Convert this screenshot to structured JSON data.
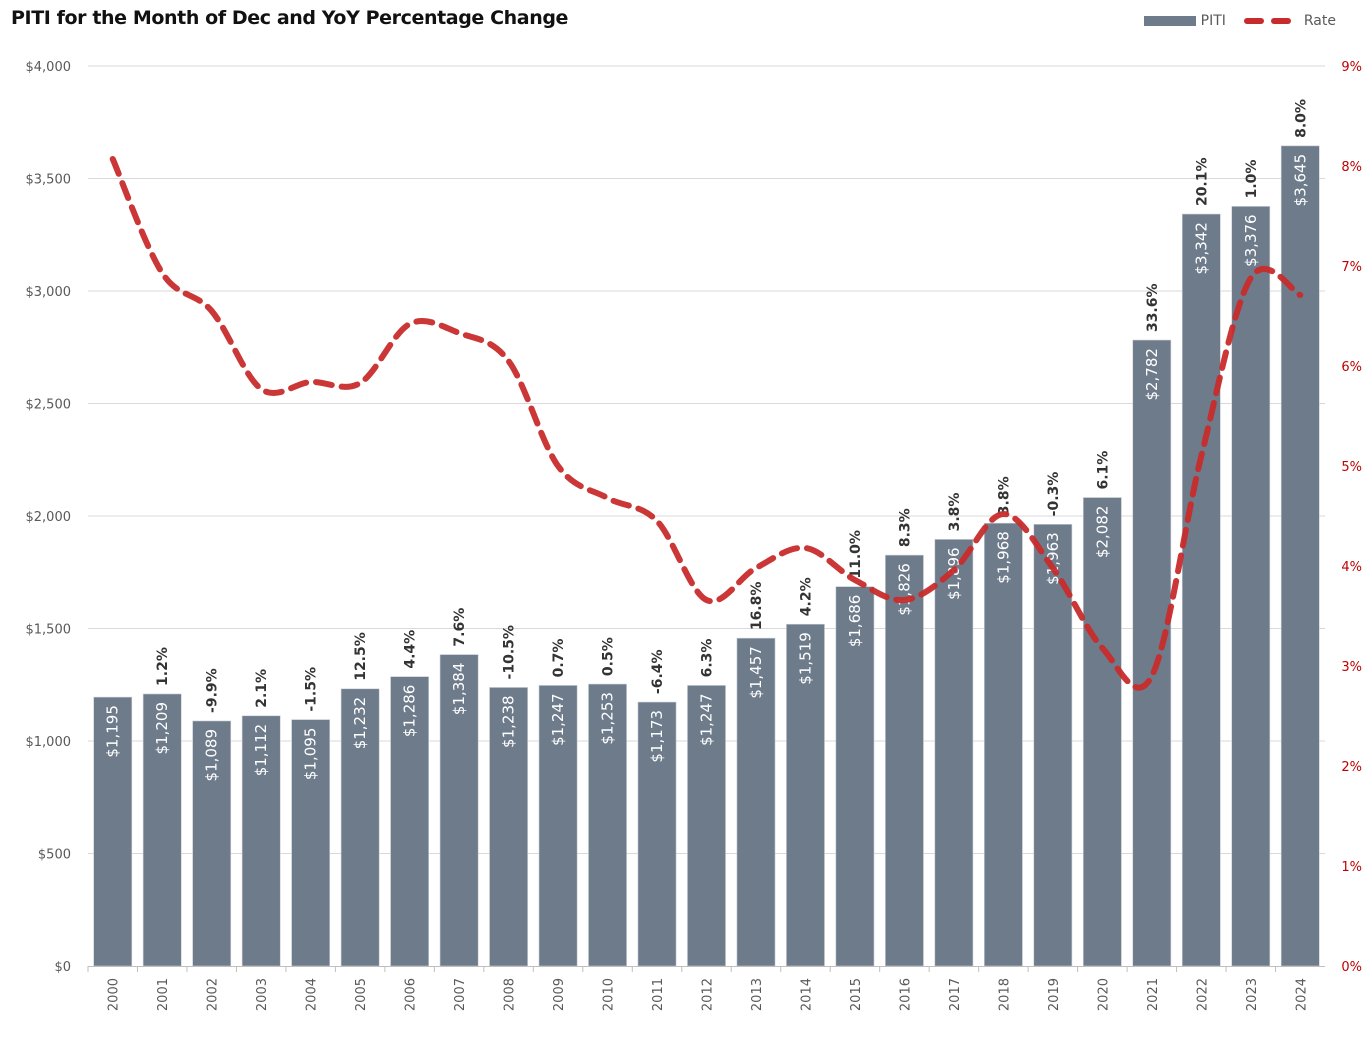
{
  "chart_data": {
    "type": "bar",
    "title": "PITI for the Month of Dec and YoY Percentage Change",
    "xlabel": "",
    "ylabel": "",
    "y2label": "",
    "legend": {
      "placement": "top-right",
      "entries": [
        {
          "name": "PITI",
          "kind": "bar",
          "color": "#6e7b8b"
        },
        {
          "name": "Rate",
          "kind": "dashed-line",
          "color": "#c82b2b"
        }
      ]
    },
    "grid": true,
    "categories": [
      "2000",
      "2001",
      "2002",
      "2003",
      "2004",
      "2005",
      "2006",
      "2007",
      "2008",
      "2009",
      "2010",
      "2011",
      "2012",
      "2013",
      "2014",
      "2015",
      "2016",
      "2017",
      "2018",
      "2019",
      "2020",
      "2021",
      "2022",
      "2023",
      "2024"
    ],
    "ylim": [
      0,
      4000
    ],
    "yticks": [
      0,
      500,
      1000,
      1500,
      2000,
      2500,
      3000,
      3500,
      4000
    ],
    "ytick_labels": [
      "$0",
      "$500",
      "$1,000",
      "$1,500",
      "$2,000",
      "$2,500",
      "$3,000",
      "$3,500",
      "$4,000"
    ],
    "y2lim": [
      0,
      9
    ],
    "y2ticks": [
      0,
      1,
      2,
      3,
      4,
      5,
      6,
      7,
      8,
      9
    ],
    "y2tick_labels": [
      "0%",
      "1%",
      "2%",
      "3%",
      "4%",
      "5%",
      "6%",
      "7%",
      "8%",
      "9%"
    ],
    "series": [
      {
        "name": "PITI",
        "type": "bar",
        "axis": "left",
        "color": "#6e7b8b",
        "values": [
          1195,
          1209,
          1089,
          1112,
          1095,
          1232,
          1286,
          1384,
          1238,
          1247,
          1253,
          1173,
          1247,
          1457,
          1519,
          1686,
          1826,
          1896,
          1968,
          1963,
          2082,
          2782,
          3342,
          3376,
          3645
        ],
        "value_labels": [
          "$1,195",
          "$1,209",
          "$1,089",
          "$1,112",
          "$1,095",
          "$1,232",
          "$1,286",
          "$1,384",
          "$1,238",
          "$1,247",
          "$1,253",
          "$1,173",
          "$1,247",
          "$1,457",
          "$1,519",
          "$1,686",
          "$1,826",
          "$1,896",
          "$1,968",
          "$1,963",
          "$2,082",
          "$2,782",
          "$3,342",
          "$3,376",
          "$3,645"
        ],
        "yoy_labels": [
          "",
          "1.2%",
          "-9.9%",
          "2.1%",
          "-1.5%",
          "12.5%",
          "4.4%",
          "7.6%",
          "-10.5%",
          "0.7%",
          "0.5%",
          "-6.4%",
          "6.3%",
          "16.8%",
          "4.2%",
          "11.0%",
          "8.3%",
          "3.8%",
          "3.8%",
          "-0.3%",
          "6.1%",
          "33.6%",
          "20.1%",
          "1.0%",
          "8.0%"
        ]
      },
      {
        "name": "Rate",
        "type": "line",
        "style": "dashed-smooth",
        "axis": "right",
        "color": "#c82b2b",
        "values": [
          8.07,
          6.93,
          6.55,
          5.77,
          5.84,
          5.83,
          6.42,
          6.33,
          6.05,
          5.0,
          4.68,
          4.45,
          3.66,
          3.98,
          4.18,
          3.86,
          3.66,
          3.96,
          4.52,
          3.98,
          3.18,
          2.9,
          5.1,
          6.88,
          6.71
        ]
      }
    ]
  }
}
